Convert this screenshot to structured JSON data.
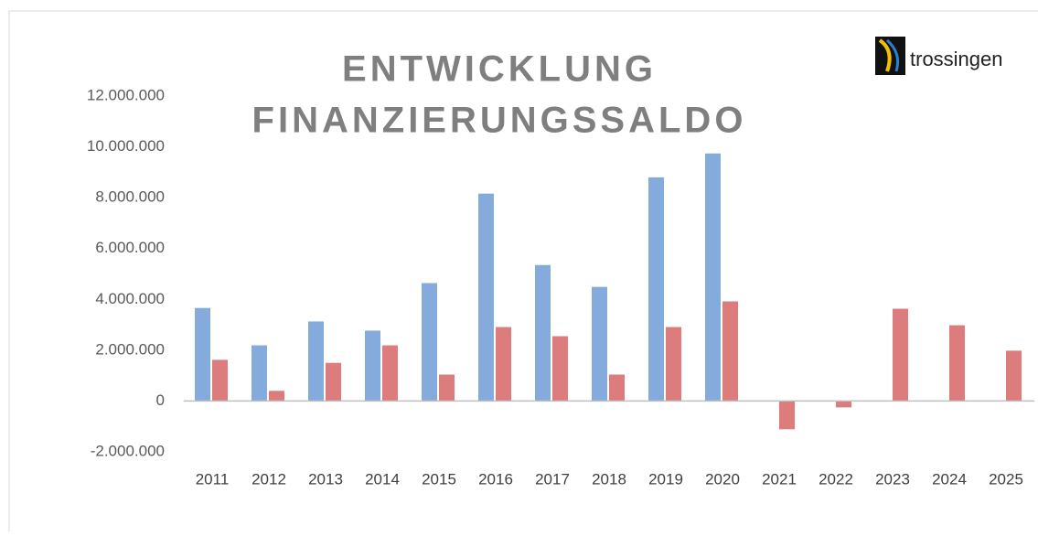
{
  "chart_data": {
    "type": "bar",
    "title": [
      "ENTWICKLUNG",
      "FINANZIERUNGSSALDO"
    ],
    "logo": "trossingen",
    "categories": [
      "2011",
      "2012",
      "2013",
      "2014",
      "2015",
      "2016",
      "2017",
      "2018",
      "2019",
      "2020",
      "2021",
      "2022",
      "2023",
      "2024",
      "2025"
    ],
    "series": [
      {
        "color": "#5b8fd0",
        "values": [
          3660000,
          2190000,
          3130000,
          2770000,
          4640000,
          8160000,
          5350000,
          4490000,
          8800000,
          9740000,
          null,
          null,
          null,
          null,
          null
        ]
      },
      {
        "color": "#d05050",
        "values": [
          1620000,
          400000,
          1500000,
          2190000,
          1040000,
          2910000,
          2550000,
          1040000,
          2910000,
          3920000,
          -1110000,
          -250000,
          3630000,
          2980000,
          1980000
        ]
      }
    ],
    "ylim": [
      -2000000,
      12000000
    ],
    "yticks": [
      {
        "value": -2000000,
        "label": "-2.000.000"
      },
      0,
      {
        "value": 2000000,
        "label": "2.000.000"
      },
      {
        "value": 4000000,
        "label": "4.000.000"
      },
      {
        "value": 6000000,
        "label": "6.000.000"
      },
      {
        "value": 8000000,
        "label": "8.000.000"
      },
      {
        "value": 10000000,
        "label": "10.000.000"
      },
      {
        "value": 12000000,
        "label": "12.000.000"
      }
    ],
    "grid": false
  }
}
